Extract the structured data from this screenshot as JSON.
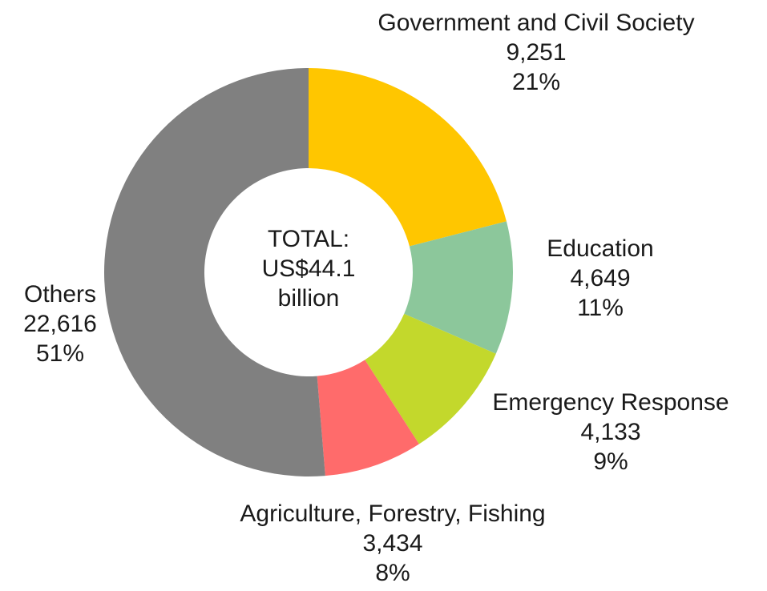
{
  "chart_data": {
    "type": "pie",
    "donut": true,
    "unit_note": "",
    "center_text": [
      "TOTAL:",
      "US$44.1",
      "billion"
    ],
    "slices": [
      {
        "name": "Government and Civil Society",
        "value": 9251,
        "value_label": "9,251",
        "percent_label": "21%",
        "color": "#FFC600"
      },
      {
        "name": "Education",
        "value": 4649,
        "value_label": "4,649",
        "percent_label": "11%",
        "color": "#8CC79B"
      },
      {
        "name": "Emergency Response",
        "value": 4133,
        "value_label": "4,133",
        "percent_label": "9%",
        "color": "#C3D82C"
      },
      {
        "name": "Agriculture, Forestry, Fishing",
        "value": 3434,
        "value_label": "3,434",
        "percent_label": "8%",
        "color": "#FF6B6B"
      },
      {
        "name": "Others",
        "value": 22616,
        "value_label": "22,616",
        "percent_label": "51%",
        "color": "#808080"
      }
    ]
  }
}
